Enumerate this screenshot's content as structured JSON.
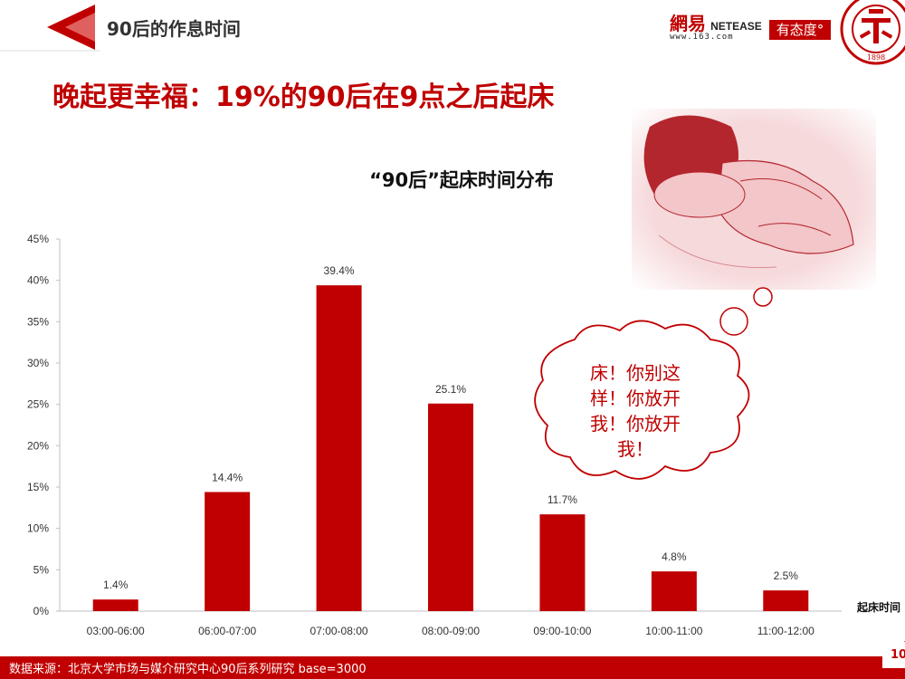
{
  "header": {
    "title": "90后的作息时间"
  },
  "logos": {
    "netease_cn": "網易",
    "netease_en": "NETEASE",
    "netease_url": "www.163.com",
    "youtaidu": "有态度°",
    "pku_year": "1898"
  },
  "page_heading": "晚起更幸福：19%的90后在9点之后起床",
  "bubble": {
    "text_lines": [
      "床！你别这",
      "样！你放开",
      "我！你放开",
      "我！"
    ]
  },
  "footer": {
    "source": "数据来源：北京大学市场与媒介研究中心90后系列研究 base=3000",
    "page_number": "10"
  },
  "colors": {
    "accent": "#c00000",
    "bar": "#c00000"
  },
  "chart_data": {
    "type": "bar",
    "title": "“90后”起床时间分布",
    "xlabel": "起床时间",
    "ylabel": "",
    "categories": [
      "03:00-06:00",
      "06:00-07:00",
      "07:00-08:00",
      "08:00-09:00",
      "09:00-10:00",
      "10:00-11:00",
      "11:00-12:00"
    ],
    "values": [
      1.4,
      14.4,
      39.4,
      25.1,
      11.7,
      4.8,
      2.5
    ],
    "value_labels": [
      "1.4%",
      "14.4%",
      "39.4%",
      "25.1%",
      "11.7%",
      "4.8%",
      "2.5%"
    ],
    "yticks": [
      "0%",
      "5%",
      "10%",
      "15%",
      "20%",
      "25%",
      "30%",
      "35%",
      "40%",
      "45%"
    ],
    "ylim": [
      0,
      45
    ],
    "grid": false
  }
}
